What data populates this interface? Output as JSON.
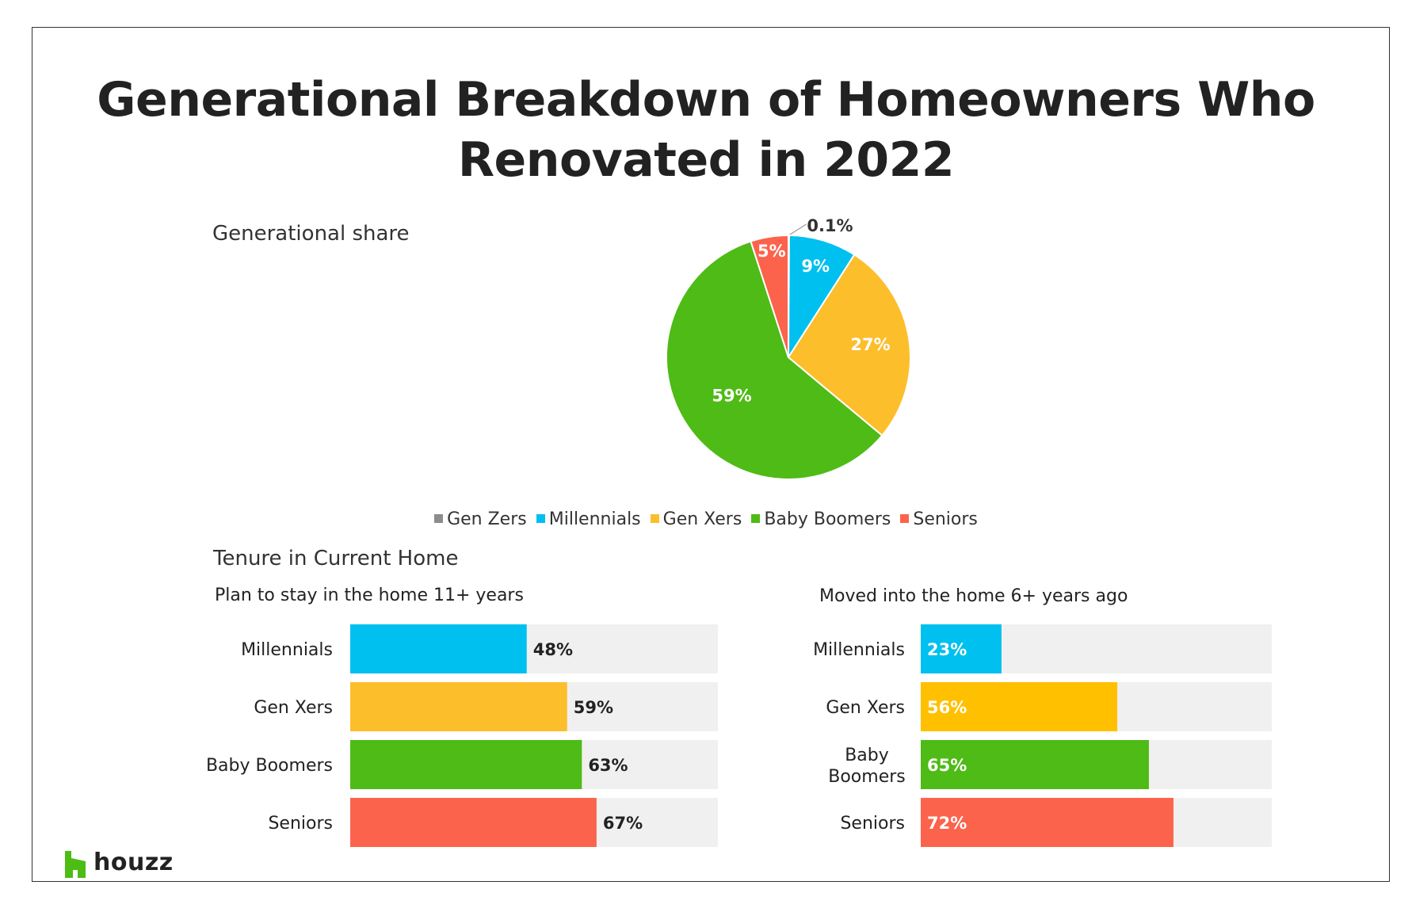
{
  "title_line1": "Generational Breakdown of Homeowners Who",
  "title_line2": "Renovated in 2022",
  "pie_section_label": "Generational share",
  "tenure_section_label": "Tenure in Current Home",
  "logo_text": "houzz",
  "colors": {
    "gen_zers": "#8c8c8c",
    "millennials": "#00c0ef",
    "gen_xers": "#fdbe2c",
    "baby_boomers": "#4fbb16",
    "seniors": "#fc634c",
    "bar_background": "#f0f0f0",
    "logo_green": "#4dbc15"
  },
  "chart_data": [
    {
      "type": "pie",
      "title": "Generational share",
      "categories": [
        "Gen Zers",
        "Millennials",
        "Gen Xers",
        "Baby Boomers",
        "Seniors"
      ],
      "values": [
        0.1,
        9,
        27,
        59,
        5
      ],
      "labels": [
        "0.1%",
        "9%",
        "27%",
        "59%",
        "5%"
      ],
      "colors": [
        "#8c8c8c",
        "#00c0ef",
        "#fdbe2c",
        "#4fbb16",
        "#fc634c"
      ],
      "legend": "bottom"
    },
    {
      "type": "bar",
      "orientation": "horizontal",
      "title": "Plan to stay in the home 11+ years",
      "categories": [
        "Millennials",
        "Gen Xers",
        "Baby Boomers",
        "Seniors"
      ],
      "values": [
        48,
        59,
        63,
        67
      ],
      "labels": [
        "48%",
        "59%",
        "63%",
        "67%"
      ],
      "colors": [
        "#00c0ef",
        "#fdbe2c",
        "#4fbb16",
        "#fc634c"
      ],
      "xlim": [
        0,
        100
      ]
    },
    {
      "type": "bar",
      "orientation": "horizontal",
      "title": "Moved into the home 6+ years ago",
      "categories": [
        "Millennials",
        "Gen Xers",
        "Baby Boomers",
        "Seniors"
      ],
      "values": [
        23,
        56,
        65,
        72
      ],
      "labels": [
        "23%",
        "56%",
        "65%",
        "72%"
      ],
      "colors": [
        "#00c0ef",
        "#ffc000",
        "#4fbb16",
        "#fc634c"
      ],
      "xlim": [
        0,
        100
      ]
    }
  ]
}
